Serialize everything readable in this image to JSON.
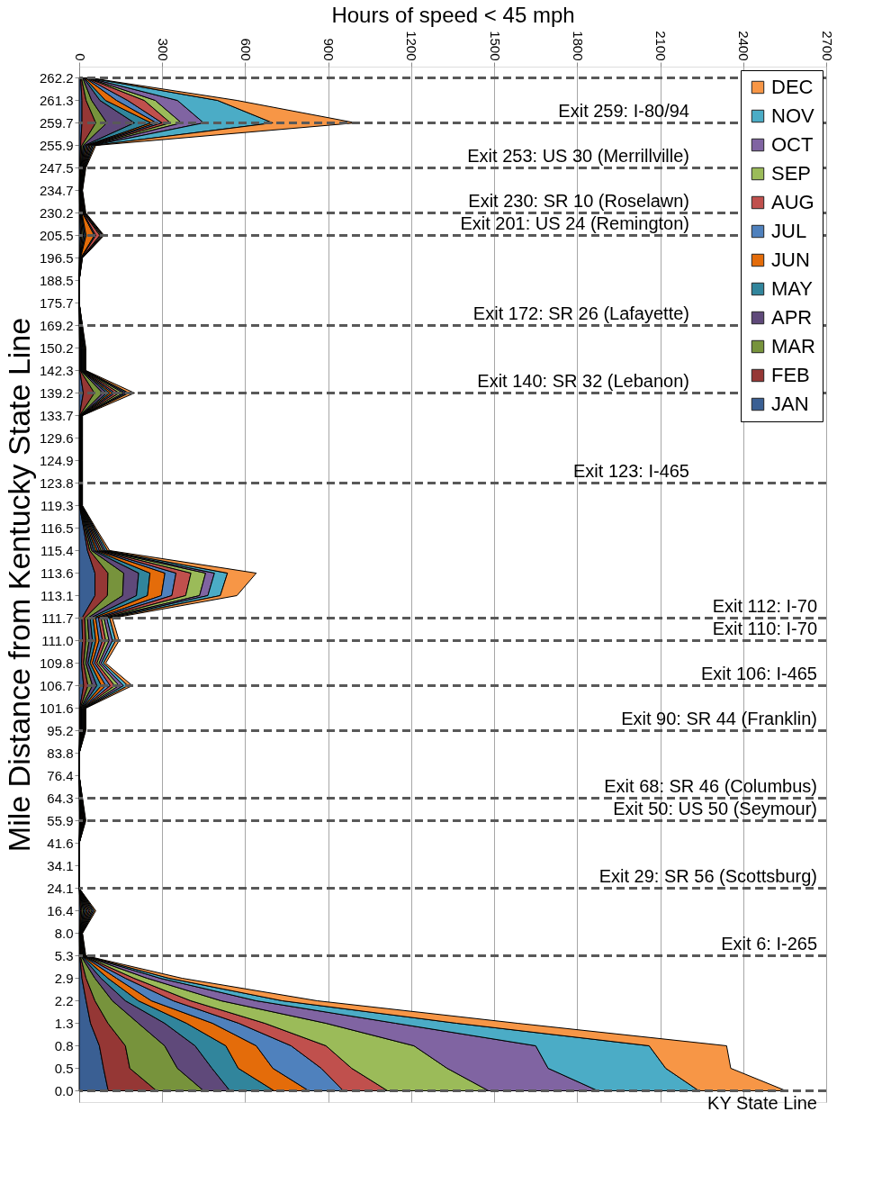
{
  "chart_data": {
    "type": "area",
    "stacked": true,
    "orientation": "horizontal",
    "xlabel": "Hours of speed < 45 mph",
    "ylabel": "Mile Distance from Kentucky State Line",
    "categories": [
      "262.2",
      "261.3",
      "259.7",
      "255.9",
      "247.5",
      "234.7",
      "230.2",
      "205.5",
      "196.5",
      "188.5",
      "175.7",
      "169.2",
      "150.2",
      "142.3",
      "139.2",
      "133.7",
      "129.6",
      "124.9",
      "123.8",
      "119.3",
      "116.5",
      "115.4",
      "113.6",
      "113.1",
      "111.7",
      "111.0",
      "109.8",
      "106.7",
      "101.6",
      "95.2",
      "83.8",
      "76.4",
      "64.3",
      "55.9",
      "41.6",
      "34.1",
      "24.1",
      "16.4",
      "8.0",
      "5.3",
      "2.9",
      "2.2",
      "1.3",
      "0.8",
      "0.5",
      "0.0"
    ],
    "xlim": [
      0,
      2700
    ],
    "xticks": [
      0,
      300,
      600,
      900,
      1200,
      1500,
      1800,
      2100,
      2400,
      2700
    ],
    "grid": "x",
    "legend": "top right",
    "series": [
      {
        "name": "JAN",
        "color": "#3a5f93",
        "values": [
          5,
          10,
          10,
          5,
          2,
          1,
          2,
          5,
          1,
          0,
          0,
          1,
          2,
          2,
          15,
          1,
          1,
          1,
          1,
          1,
          16,
          30,
          57,
          57,
          10,
          12,
          8,
          16,
          2,
          2,
          0,
          0,
          1,
          2,
          0,
          0,
          0,
          5,
          1,
          2,
          10,
          25,
          41,
          73,
          88,
          105
        ]
      },
      {
        "name": "FEB",
        "color": "#953735",
        "values": [
          3,
          15,
          50,
          5,
          2,
          1,
          2,
          5,
          1,
          0,
          0,
          1,
          2,
          2,
          40,
          1,
          1,
          1,
          1,
          1,
          4,
          8,
          47,
          45,
          10,
          12,
          8,
          16,
          2,
          2,
          0,
          0,
          1,
          2,
          0,
          0,
          0,
          5,
          1,
          2,
          15,
          32,
          63,
          94,
          95,
          175
        ]
      },
      {
        "name": "MAR",
        "color": "#77933c",
        "values": [
          5,
          20,
          40,
          5,
          2,
          1,
          2,
          5,
          1,
          0,
          0,
          1,
          2,
          2,
          30,
          1,
          1,
          1,
          1,
          1,
          4,
          7,
          57,
          55,
          10,
          12,
          8,
          16,
          2,
          2,
          0,
          0,
          1,
          2,
          0,
          0,
          0,
          5,
          1,
          2,
          32,
          63,
          110,
          142,
          172,
          170
        ]
      },
      {
        "name": "APR",
        "color": "#5f497a",
        "values": [
          3,
          30,
          100,
          5,
          2,
          1,
          2,
          5,
          1,
          0,
          0,
          1,
          2,
          2,
          15,
          1,
          1,
          1,
          1,
          1,
          4,
          7,
          54,
          50,
          10,
          12,
          8,
          16,
          2,
          2,
          0,
          0,
          1,
          2,
          0,
          0,
          0,
          5,
          1,
          2,
          22,
          47,
          95,
          110,
          125,
          95
        ]
      },
      {
        "name": "MAY",
        "color": "#31859c",
        "values": [
          3,
          20,
          60,
          5,
          2,
          1,
          2,
          5,
          1,
          0,
          0,
          1,
          2,
          2,
          10,
          1,
          1,
          1,
          1,
          1,
          4,
          7,
          41,
          40,
          10,
          12,
          8,
          16,
          2,
          2,
          0,
          0,
          1,
          2,
          0,
          0,
          0,
          5,
          1,
          2,
          25,
          47,
          79,
          111,
          95,
          160
        ]
      },
      {
        "name": "JUN",
        "color": "#e46c0a",
        "values": [
          3,
          40,
          20,
          5,
          2,
          1,
          2,
          30,
          1,
          0,
          0,
          1,
          2,
          2,
          10,
          1,
          1,
          1,
          1,
          1,
          4,
          7,
          54,
          50,
          10,
          12,
          8,
          16,
          2,
          2,
          0,
          0,
          1,
          2,
          0,
          0,
          0,
          5,
          1,
          2,
          31,
          47,
          94,
          110,
          125,
          125
        ]
      },
      {
        "name": "JUL",
        "color": "#4f81bd",
        "values": [
          3,
          40,
          20,
          5,
          2,
          1,
          2,
          5,
          1,
          0,
          0,
          1,
          2,
          2,
          10,
          1,
          1,
          1,
          1,
          1,
          4,
          7,
          40,
          38,
          10,
          12,
          8,
          16,
          2,
          2,
          0,
          0,
          1,
          2,
          0,
          0,
          0,
          5,
          1,
          2,
          32,
          79,
          95,
          126,
          175,
          125
        ]
      },
      {
        "name": "AUG",
        "color": "#c0504d",
        "values": [
          3,
          60,
          30,
          5,
          2,
          1,
          2,
          15,
          1,
          0,
          0,
          1,
          2,
          2,
          15,
          1,
          1,
          1,
          1,
          1,
          4,
          7,
          54,
          50,
          10,
          12,
          8,
          16,
          2,
          2,
          0,
          0,
          1,
          2,
          0,
          0,
          0,
          5,
          1,
          2,
          31,
          63,
          94,
          126,
          110,
          160
        ]
      },
      {
        "name": "SEP",
        "color": "#9bbb59",
        "values": [
          3,
          40,
          40,
          5,
          2,
          1,
          2,
          5,
          1,
          0,
          0,
          1,
          2,
          2,
          15,
          1,
          1,
          1,
          1,
          1,
          4,
          7,
          53,
          50,
          10,
          12,
          8,
          16,
          2,
          2,
          0,
          0,
          1,
          2,
          0,
          0,
          0,
          5,
          1,
          2,
          48,
          110,
          221,
          318,
          345,
          365
        ]
      },
      {
        "name": "OCT",
        "color": "#8064a2",
        "values": [
          3,
          80,
          80,
          5,
          2,
          1,
          2,
          5,
          1,
          0,
          0,
          1,
          2,
          2,
          10,
          1,
          1,
          1,
          1,
          1,
          4,
          7,
          32,
          30,
          10,
          12,
          8,
          16,
          2,
          2,
          0,
          0,
          1,
          2,
          0,
          0,
          0,
          5,
          1,
          2,
          47,
          127,
          252,
          440,
          365,
          395
        ]
      },
      {
        "name": "NOV",
        "color": "#4bacc6",
        "values": [
          3,
          145,
          250,
          5,
          2,
          1,
          2,
          2,
          1,
          0,
          0,
          1,
          2,
          2,
          10,
          1,
          1,
          1,
          1,
          1,
          4,
          8,
          47,
          45,
          10,
          12,
          8,
          16,
          2,
          2,
          0,
          0,
          1,
          2,
          0,
          0,
          0,
          5,
          1,
          2,
          32,
          94,
          221,
          410,
          425,
          365
        ]
      },
      {
        "name": "DEC",
        "color": "#f79646",
        "values": [
          3,
          70,
          300,
          5,
          2,
          1,
          2,
          3,
          1,
          0,
          0,
          1,
          2,
          2,
          20,
          1,
          1,
          1,
          1,
          1,
          4,
          8,
          104,
          60,
          10,
          12,
          8,
          16,
          2,
          2,
          0,
          0,
          1,
          2,
          0,
          0,
          0,
          5,
          1,
          2,
          47,
          126,
          220,
          280,
          235,
          315
        ]
      }
    ],
    "ref_lines": [
      {
        "axis": "y",
        "value": "262.2",
        "label": null,
        "color": "#595959",
        "line_style": "dashed"
      },
      {
        "axis": "y",
        "value": "259.7",
        "label": "Exit 259: I-80/94",
        "color": "#595959",
        "line_style": "dashed"
      },
      {
        "axis": "y",
        "value": "247.5",
        "label": "Exit 253: US 30 (Merrillville)",
        "color": "#595959",
        "line_style": "dashed"
      },
      {
        "axis": "y",
        "value": "230.2",
        "label": "Exit 230: SR 10 (Roselawn)",
        "color": "#595959",
        "line_style": "dashed"
      },
      {
        "axis": "y",
        "value": "205.5",
        "label": "Exit 201: US 24 (Remington)",
        "color": "#595959",
        "line_style": "dashed"
      },
      {
        "axis": "y",
        "value": "169.2",
        "label": "Exit 172: SR 26 (Lafayette)",
        "color": "#595959",
        "line_style": "dashed"
      },
      {
        "axis": "y",
        "value": "139.2",
        "label": "Exit 140: SR 32 (Lebanon)",
        "color": "#595959",
        "line_style": "dashed"
      },
      {
        "axis": "y",
        "value": "123.8",
        "label": "Exit 123: I-465",
        "color": "#595959",
        "line_style": "dashed"
      },
      {
        "axis": "y",
        "value": "111.7",
        "label": "Exit 112: I-70",
        "color": "#595959",
        "line_style": "dashed"
      },
      {
        "axis": "y",
        "value": "111.0",
        "label": "Exit 110: I-70",
        "color": "#595959",
        "line_style": "dashed"
      },
      {
        "axis": "y",
        "value": "106.7",
        "label": "Exit 106: I-465",
        "color": "#595959",
        "line_style": "dashed"
      },
      {
        "axis": "y",
        "value": "95.2",
        "label": "Exit 90: SR 44 (Franklin)",
        "color": "#595959",
        "line_style": "dashed"
      },
      {
        "axis": "y",
        "value": "64.3",
        "label": "Exit 68: SR 46 (Columbus)",
        "color": "#595959",
        "line_style": "dashed"
      },
      {
        "axis": "y",
        "value": "55.9",
        "label": "Exit 50: US 50 (Seymour)",
        "color": "#595959",
        "line_style": "dashed"
      },
      {
        "axis": "y",
        "value": "24.1",
        "label": "Exit 29: SR 56 (Scottsburg)",
        "color": "#595959",
        "line_style": "dashed"
      },
      {
        "axis": "y",
        "value": "5.3",
        "label": "Exit 6: I-265",
        "color": "#595959",
        "line_style": "dashed"
      },
      {
        "axis": "y",
        "value": "0.0",
        "label": "KY State Line",
        "color": "#595959",
        "line_style": "dashed"
      }
    ]
  }
}
